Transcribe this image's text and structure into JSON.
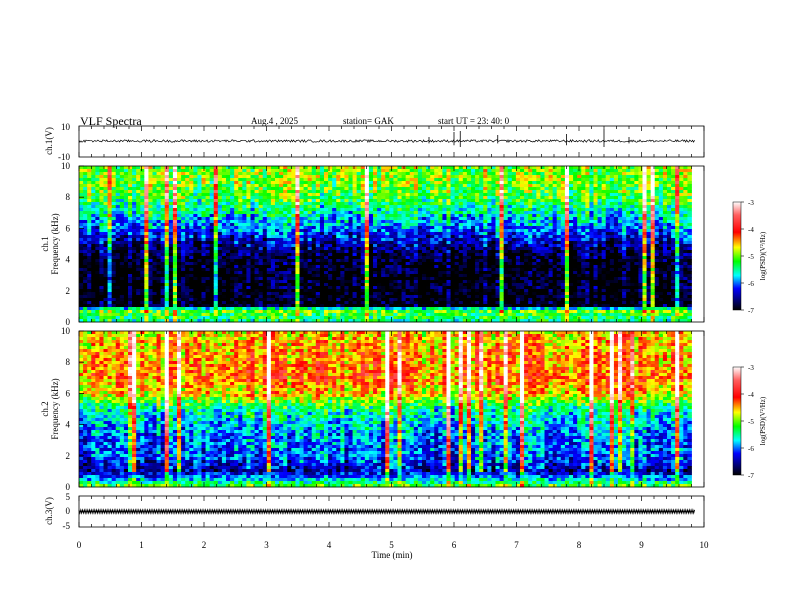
{
  "header": {
    "title": "VLF  Spectra",
    "date": "Aug.4   , 2025",
    "station": "station= GAK",
    "start_ut": "start  UT  =    23: 40: 0"
  },
  "panels": {
    "ch1_wave": {
      "ylabel": "ch.1(V)",
      "ticks": [
        "10",
        "-10"
      ]
    },
    "ch1_spec": {
      "ylabel_ch": "ch.1",
      "ylabel": "Frequency  (kHz)"
    },
    "ch2_spec": {
      "ylabel_ch": "ch.2",
      "ylabel": "Frequency  (kHz)"
    },
    "ch3_wave": {
      "ylabel": "ch.3(V)",
      "ticks": [
        "5",
        "0",
        "-5"
      ]
    }
  },
  "colorbar": {
    "label": "log(PSD)(V²/Hz)",
    "ticks": [
      "-3",
      "-4",
      "-5",
      "-6",
      "-7"
    ],
    "colors": [
      "#ffffff",
      "#ff0000",
      "#ffff00",
      "#00ff00",
      "#00ffff",
      "#0000ff",
      "#000080",
      "#000000"
    ]
  },
  "chart_data": [
    {
      "type": "line",
      "name": "ch1_waveform",
      "ylabel": "ch.1(V)",
      "ylim": [
        -10,
        10
      ],
      "xlim": [
        0,
        10
      ],
      "baseline": 0,
      "spikes_x": [
        5.6,
        6.0,
        6.1,
        6.7,
        7.8,
        8.4,
        8.8
      ]
    },
    {
      "type": "heatmap",
      "name": "ch1_spectrogram",
      "ylabel": "Frequency  (kHz)",
      "ylim": [
        0,
        10
      ],
      "yticks": [
        0,
        2,
        4,
        6,
        8,
        10
      ],
      "xlim": [
        0,
        9.8
      ],
      "zlim": [
        -7,
        -3
      ],
      "profile_freq_khz": [
        0,
        0.8,
        1,
        2,
        3,
        4,
        5,
        6,
        7,
        8,
        9,
        10
      ],
      "profile_log_psd": [
        -5.5,
        -5.0,
        -7.0,
        -7.0,
        -7.0,
        -6.9,
        -6.5,
        -6.0,
        -5.6,
        -5.2,
        -5.0,
        -5.0
      ]
    },
    {
      "type": "heatmap",
      "name": "ch2_spectrogram",
      "ylabel": "Frequency  (kHz)",
      "ylim": [
        0,
        10
      ],
      "yticks": [
        0,
        2,
        4,
        6,
        8,
        10
      ],
      "xlim": [
        0,
        9.8
      ],
      "zlim": [
        -7,
        -3
      ],
      "profile_freq_khz": [
        0,
        1,
        2,
        3,
        4,
        5,
        6,
        7,
        8,
        9,
        10
      ],
      "profile_log_psd": [
        -5.0,
        -6.5,
        -6.0,
        -6.0,
        -5.8,
        -5.5,
        -4.6,
        -4.3,
        -4.4,
        -4.5,
        -4.6
      ]
    },
    {
      "type": "line",
      "name": "ch3_waveform",
      "ylabel": "ch.3(V)",
      "ylim": [
        -5,
        5
      ],
      "xlim": [
        0,
        10
      ],
      "baseline": 0
    }
  ],
  "xaxis": {
    "label": "Time  (min)",
    "ticks": [
      "0",
      "1",
      "2",
      "3",
      "4",
      "5",
      "6",
      "7",
      "8",
      "9",
      "10"
    ],
    "range": [
      0,
      10
    ]
  }
}
